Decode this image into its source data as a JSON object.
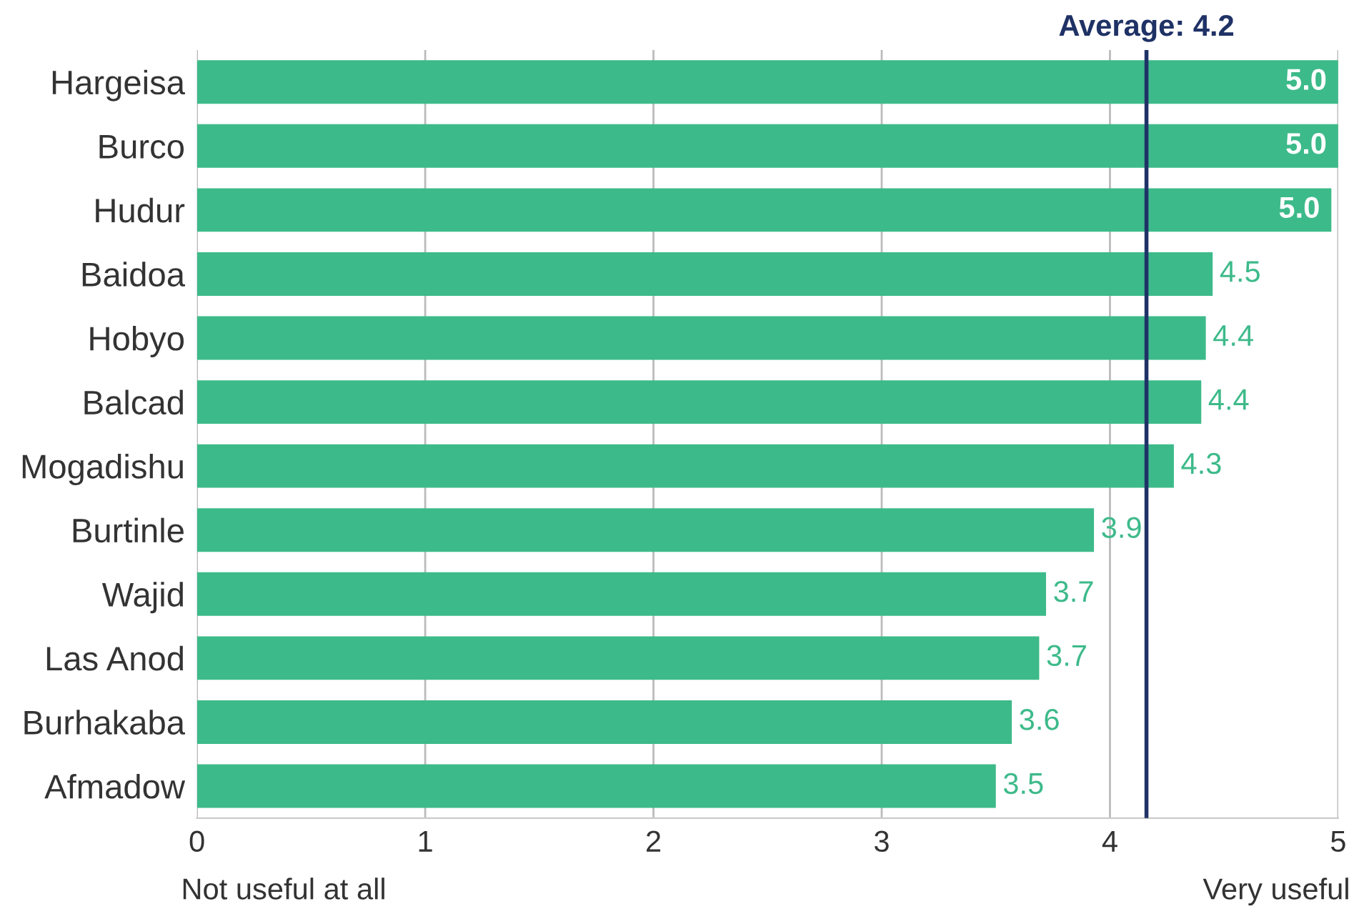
{
  "chart_data": {
    "type": "bar",
    "orientation": "horizontal",
    "categories": [
      "Hargeisa",
      "Burco",
      "Hudur",
      "Baidoa",
      "Hobyo",
      "Balcad",
      "Mogadishu",
      "Burtinle",
      "Wajid",
      "Las Anod",
      "Burhakaba",
      "Afmadow"
    ],
    "values": [
      5.0,
      5.0,
      4.97,
      4.45,
      4.42,
      4.4,
      4.28,
      3.93,
      3.72,
      3.69,
      3.57,
      3.5
    ],
    "value_labels": [
      "5.0",
      "5.0",
      "5.0",
      "4.5",
      "4.4",
      "4.4",
      "4.3",
      "3.9",
      "3.7",
      "3.7",
      "3.6",
      "3.5"
    ],
    "color": "#3dba8a",
    "xlim": [
      0,
      5
    ],
    "xticks": [
      0,
      1,
      2,
      3,
      4,
      5
    ],
    "grid": "x",
    "ref_lines": [
      {
        "axis": "x",
        "value": 4.16,
        "label": "Average: 4.2",
        "color": "#1f3266"
      }
    ],
    "annotations": [
      "Not useful at all",
      "Very useful"
    ]
  }
}
